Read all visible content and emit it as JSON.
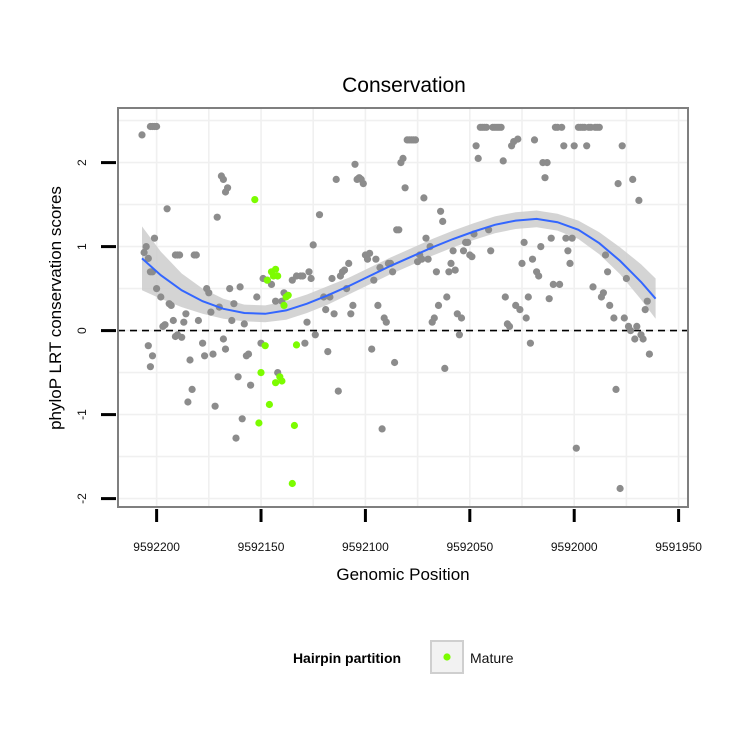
{
  "chart_data": {
    "type": "scatter",
    "title": "Conservation",
    "xlabel": "Genomic Position",
    "ylabel": "phyloP LRT conservation scores",
    "x_reversed": true,
    "xlim": [
      9592218.5,
      9591945.5
    ],
    "ylim": [
      -2.1,
      2.65
    ],
    "xticks": [
      9592200,
      9592150,
      9592100,
      9592050,
      9592000,
      9591950
    ],
    "yticks": [
      -2,
      -1,
      0,
      1,
      2
    ],
    "reference_line": {
      "y": 0,
      "style": "dashed"
    },
    "grid": true,
    "legend": {
      "position": "bottom",
      "title": "Hairpin partition",
      "entries": [
        {
          "label": "Mature",
          "color": "#7cfc00"
        }
      ]
    },
    "colors": {
      "background_points": "#8c8c8c",
      "mature": "#7cfc00",
      "smooth": "#3366ff",
      "ribbon": "#cccccc",
      "panel_border": "#7f7f7f"
    },
    "series": [
      {
        "role": "other",
        "points": [
          [
            9592207,
            2.33
          ],
          [
            9592203,
            2.43
          ],
          [
            9592202,
            2.43
          ],
          [
            9592201,
            2.43
          ],
          [
            9592200,
            2.43
          ],
          [
            9592206,
            0.93
          ],
          [
            9592205,
            1.0
          ],
          [
            9592204,
            0.86
          ],
          [
            9592203,
            0.7
          ],
          [
            9592202,
            0.7
          ],
          [
            9592201,
            1.1
          ],
          [
            9592200,
            0.5
          ],
          [
            9592204,
            -0.18
          ],
          [
            9592203,
            -0.43
          ],
          [
            9592202,
            -0.3
          ],
          [
            9592198,
            0.4
          ],
          [
            9592197,
            0.05
          ],
          [
            9592196,
            0.07
          ],
          [
            9592195,
            1.45
          ],
          [
            9592194,
            0.32
          ],
          [
            9592193,
            0.3
          ],
          [
            9592192,
            0.12
          ],
          [
            9592191,
            0.9
          ],
          [
            9592190,
            0.9
          ],
          [
            9592189,
            0.9
          ],
          [
            9592191,
            -0.07
          ],
          [
            9592190,
            -0.05
          ],
          [
            9592188,
            -0.08
          ],
          [
            9592187,
            0.1
          ],
          [
            9592186,
            0.2
          ],
          [
            9592185,
            -0.85
          ],
          [
            9592184,
            -0.35
          ],
          [
            9592183,
            -0.7
          ],
          [
            9592182,
            0.9
          ],
          [
            9592181,
            0.9
          ],
          [
            9592180,
            0.12
          ],
          [
            9592178,
            -0.15
          ],
          [
            9592177,
            -0.3
          ],
          [
            9592176,
            0.5
          ],
          [
            9592175,
            0.45
          ],
          [
            9592174,
            0.22
          ],
          [
            9592173,
            -0.28
          ],
          [
            9592172,
            -0.9
          ],
          [
            9592171,
            1.35
          ],
          [
            9592170,
            0.28
          ],
          [
            9592169,
            1.84
          ],
          [
            9592168,
            1.8
          ],
          [
            9592167,
            1.65
          ],
          [
            9592166,
            1.7
          ],
          [
            9592168,
            -0.1
          ],
          [
            9592167,
            -0.22
          ],
          [
            9592165,
            0.5
          ],
          [
            9592164,
            0.12
          ],
          [
            9592163,
            0.32
          ],
          [
            9592162,
            -1.28
          ],
          [
            9592161,
            -0.55
          ],
          [
            9592160,
            0.52
          ],
          [
            9592159,
            -1.05
          ],
          [
            9592158,
            0.08
          ],
          [
            9592157,
            -0.3
          ],
          [
            9592156,
            -0.28
          ],
          [
            9592155,
            -0.65
          ],
          [
            9592152,
            0.4
          ],
          [
            9592150,
            -0.15
          ],
          [
            9592149,
            0.62
          ],
          [
            9592147,
            0.6
          ],
          [
            9592145,
            0.55
          ],
          [
            9592143,
            0.35
          ],
          [
            9592142,
            -0.5
          ],
          [
            9592140,
            0.35
          ],
          [
            9592139,
            0.45
          ],
          [
            9592138,
            0.42
          ],
          [
            9592135,
            0.6
          ],
          [
            9592133,
            0.65
          ],
          [
            9592131,
            0.65
          ],
          [
            9592130,
            0.65
          ],
          [
            9592129,
            -0.15
          ],
          [
            9592128,
            0.1
          ],
          [
            9592127,
            0.7
          ],
          [
            9592126,
            0.62
          ],
          [
            9592125,
            1.02
          ],
          [
            9592124,
            -0.05
          ],
          [
            9592122,
            1.38
          ],
          [
            9592120,
            0.4
          ],
          [
            9592119,
            0.25
          ],
          [
            9592118,
            -0.25
          ],
          [
            9592117,
            0.4
          ],
          [
            9592116,
            0.62
          ],
          [
            9592115,
            0.2
          ],
          [
            9592114,
            1.8
          ],
          [
            9592113,
            -0.72
          ],
          [
            9592112,
            0.65
          ],
          [
            9592111,
            0.7
          ],
          [
            9592110,
            0.72
          ],
          [
            9592109,
            0.5
          ],
          [
            9592108,
            0.8
          ],
          [
            9592107,
            0.2
          ],
          [
            9592106,
            0.3
          ],
          [
            9592105,
            1.98
          ],
          [
            9592104,
            1.8
          ],
          [
            9592103,
            1.82
          ],
          [
            9592102,
            1.8
          ],
          [
            9592101,
            1.75
          ],
          [
            9592100,
            0.9
          ],
          [
            9592099,
            0.85
          ],
          [
            9592098,
            0.92
          ],
          [
            9592097,
            -0.22
          ],
          [
            9592096,
            0.6
          ],
          [
            9592095,
            0.85
          ],
          [
            9592094,
            0.3
          ],
          [
            9592093,
            0.75
          ],
          [
            9592092,
            -1.17
          ],
          [
            9592091,
            0.15
          ],
          [
            9592090,
            0.1
          ],
          [
            9592089,
            0.8
          ],
          [
            9592088,
            0.8
          ],
          [
            9592087,
            0.7
          ],
          [
            9592086,
            -0.38
          ],
          [
            9592085,
            1.2
          ],
          [
            9592084,
            1.2
          ],
          [
            9592083,
            2.0
          ],
          [
            9592082,
            2.05
          ],
          [
            9592081,
            1.7
          ],
          [
            9592080,
            2.27
          ],
          [
            9592079,
            2.27
          ],
          [
            9592078,
            2.27
          ],
          [
            9592077,
            2.27
          ],
          [
            9592076,
            2.27
          ],
          [
            9592075,
            0.82
          ],
          [
            9592074,
            0.9
          ],
          [
            9592073,
            0.85
          ],
          [
            9592072,
            1.58
          ],
          [
            9592071,
            1.1
          ],
          [
            9592070,
            0.85
          ],
          [
            9592069,
            1.0
          ],
          [
            9592068,
            0.1
          ],
          [
            9592067,
            0.15
          ],
          [
            9592066,
            0.7
          ],
          [
            9592065,
            0.3
          ],
          [
            9592064,
            1.42
          ],
          [
            9592063,
            1.3
          ],
          [
            9592062,
            -0.45
          ],
          [
            9592061,
            0.4
          ],
          [
            9592060,
            0.7
          ],
          [
            9592059,
            0.8
          ],
          [
            9592058,
            0.95
          ],
          [
            9592057,
            0.72
          ],
          [
            9592056,
            0.2
          ],
          [
            9592055,
            -0.05
          ],
          [
            9592054,
            0.15
          ],
          [
            9592053,
            0.95
          ],
          [
            9592052,
            1.05
          ],
          [
            9592051,
            1.05
          ],
          [
            9592050,
            0.9
          ],
          [
            9592049,
            0.88
          ],
          [
            9592048,
            1.15
          ],
          [
            9592047,
            2.2
          ],
          [
            9592046,
            2.05
          ],
          [
            9592045,
            2.42
          ],
          [
            9592044,
            2.42
          ],
          [
            9592043,
            2.42
          ],
          [
            9592042,
            2.42
          ],
          [
            9592041,
            1.2
          ],
          [
            9592040,
            0.95
          ],
          [
            9592039,
            2.42
          ],
          [
            9592038,
            2.42
          ],
          [
            9592037,
            2.42
          ],
          [
            9592036,
            2.42
          ],
          [
            9592035,
            2.42
          ],
          [
            9592034,
            2.02
          ],
          [
            9592033,
            0.4
          ],
          [
            9592032,
            0.08
          ],
          [
            9592031,
            0.05
          ],
          [
            9592030,
            2.2
          ],
          [
            9592029,
            2.25
          ],
          [
            9592028,
            0.3
          ],
          [
            9592027,
            2.28
          ],
          [
            9592026,
            0.25
          ],
          [
            9592025,
            0.8
          ],
          [
            9592024,
            1.05
          ],
          [
            9592023,
            0.15
          ],
          [
            9592022,
            0.4
          ],
          [
            9592021,
            -0.15
          ],
          [
            9592020,
            0.85
          ],
          [
            9592019,
            2.27
          ],
          [
            9592018,
            0.7
          ],
          [
            9592017,
            0.65
          ],
          [
            9592016,
            1.0
          ],
          [
            9592015,
            2.0
          ],
          [
            9592014,
            1.82
          ],
          [
            9592013,
            2.0
          ],
          [
            9592012,
            0.38
          ],
          [
            9592011,
            1.1
          ],
          [
            9592010,
            0.55
          ],
          [
            9592009,
            2.42
          ],
          [
            9592008,
            2.42
          ],
          [
            9592007,
            0.55
          ],
          [
            9592006,
            2.42
          ],
          [
            9592005,
            2.2
          ],
          [
            9592004,
            1.1
          ],
          [
            9592003,
            0.95
          ],
          [
            9592002,
            0.8
          ],
          [
            9592001,
            1.1
          ],
          [
            9592000,
            2.2
          ],
          [
            9591999,
            -1.4
          ],
          [
            9591998,
            2.42
          ],
          [
            9591997,
            2.42
          ],
          [
            9591996,
            2.42
          ],
          [
            9591995,
            2.42
          ],
          [
            9591994,
            2.2
          ],
          [
            9591993,
            2.42
          ],
          [
            9591992,
            2.42
          ],
          [
            9591991,
            0.52
          ],
          [
            9591990,
            2.42
          ],
          [
            9591989,
            2.42
          ],
          [
            9591988,
            2.42
          ],
          [
            9591987,
            0.4
          ],
          [
            9591986,
            0.45
          ],
          [
            9591985,
            0.9
          ],
          [
            9591984,
            0.7
          ],
          [
            9591983,
            0.3
          ],
          [
            9591981,
            0.15
          ],
          [
            9591980,
            -0.7
          ],
          [
            9591979,
            1.75
          ],
          [
            9591978,
            -1.88
          ],
          [
            9591977,
            2.2
          ],
          [
            9591976,
            0.15
          ],
          [
            9591975,
            0.62
          ],
          [
            9591974,
            0.05
          ],
          [
            9591973,
            0.0
          ],
          [
            9591972,
            1.8
          ],
          [
            9591971,
            -0.1
          ],
          [
            9591970,
            0.05
          ],
          [
            9591969,
            1.55
          ],
          [
            9591968,
            -0.05
          ],
          [
            9591967,
            -0.1
          ],
          [
            9591966,
            0.25
          ],
          [
            9591965,
            0.35
          ],
          [
            9591964,
            -0.28
          ]
        ]
      },
      {
        "name": "Mature",
        "points": [
          [
            9592153,
            1.56
          ],
          [
            9592150,
            -0.5
          ],
          [
            9592151,
            -1.1
          ],
          [
            9592148,
            -0.18
          ],
          [
            9592147,
            0.6
          ],
          [
            9592146,
            -0.88
          ],
          [
            9592145,
            0.7
          ],
          [
            9592144,
            0.65
          ],
          [
            9592143,
            0.73
          ],
          [
            9592143,
            -0.62
          ],
          [
            9592142,
            0.65
          ],
          [
            9592141,
            -0.55
          ],
          [
            9592140,
            -0.6
          ],
          [
            9592139,
            0.3
          ],
          [
            9592138,
            0.4
          ],
          [
            9592137,
            0.42
          ],
          [
            9592135,
            -1.82
          ],
          [
            9592134,
            -1.13
          ],
          [
            9592133,
            -0.17
          ]
        ]
      }
    ],
    "smooth": {
      "x": [
        9592207,
        9592198,
        9592188,
        9592178,
        9592168,
        9592158,
        9592148,
        9592138,
        9592128,
        9592118,
        9592108,
        9592098,
        9592088,
        9592078,
        9592068,
        9592058,
        9592048,
        9592038,
        9592028,
        9592018,
        9592008,
        9591998,
        9591988,
        9591978,
        9591968,
        9591961
      ],
      "y": [
        0.86,
        0.66,
        0.48,
        0.35,
        0.26,
        0.21,
        0.2,
        0.24,
        0.32,
        0.42,
        0.53,
        0.65,
        0.77,
        0.88,
        0.99,
        1.09,
        1.18,
        1.26,
        1.31,
        1.33,
        1.29,
        1.2,
        1.04,
        0.83,
        0.58,
        0.38
      ],
      "se": [
        0.38,
        0.28,
        0.2,
        0.15,
        0.12,
        0.1,
        0.1,
        0.11,
        0.11,
        0.11,
        0.1,
        0.1,
        0.1,
        0.1,
        0.1,
        0.1,
        0.1,
        0.1,
        0.1,
        0.1,
        0.1,
        0.11,
        0.13,
        0.16,
        0.21,
        0.24
      ]
    }
  }
}
